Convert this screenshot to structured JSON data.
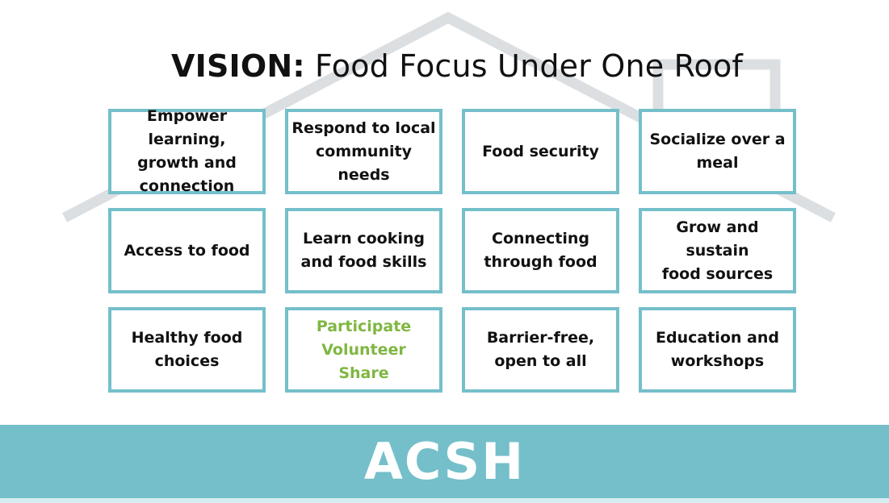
{
  "title": {
    "bold": "VISION:",
    "rest": "Food Focus Under One Roof"
  },
  "boxes": [
    {
      "text": "Empower learning,\ngrowth and\nconnection"
    },
    {
      "text": "Respond to local\ncommunity needs"
    },
    {
      "text": "Food security"
    },
    {
      "text": "Socialize over a\nmeal"
    },
    {
      "text": "Access to food"
    },
    {
      "text": "Learn cooking\nand food skills"
    },
    {
      "text": "Connecting\nthrough food"
    },
    {
      "text": "Grow and sustain\nfood sources"
    },
    {
      "text": "Healthy food\nchoices"
    },
    {
      "text": "Participate\nVolunteer\nShare"
    },
    {
      "text": "Barrier-free,\nopen to all"
    },
    {
      "text": "Education and\nworkshops"
    }
  ],
  "banner": {
    "text": "ACSH"
  },
  "colors": {
    "box_border": "#74bfca",
    "banner": "#74bfca",
    "highlight_text": "#7fb742",
    "roof": "#dcdfe1"
  }
}
